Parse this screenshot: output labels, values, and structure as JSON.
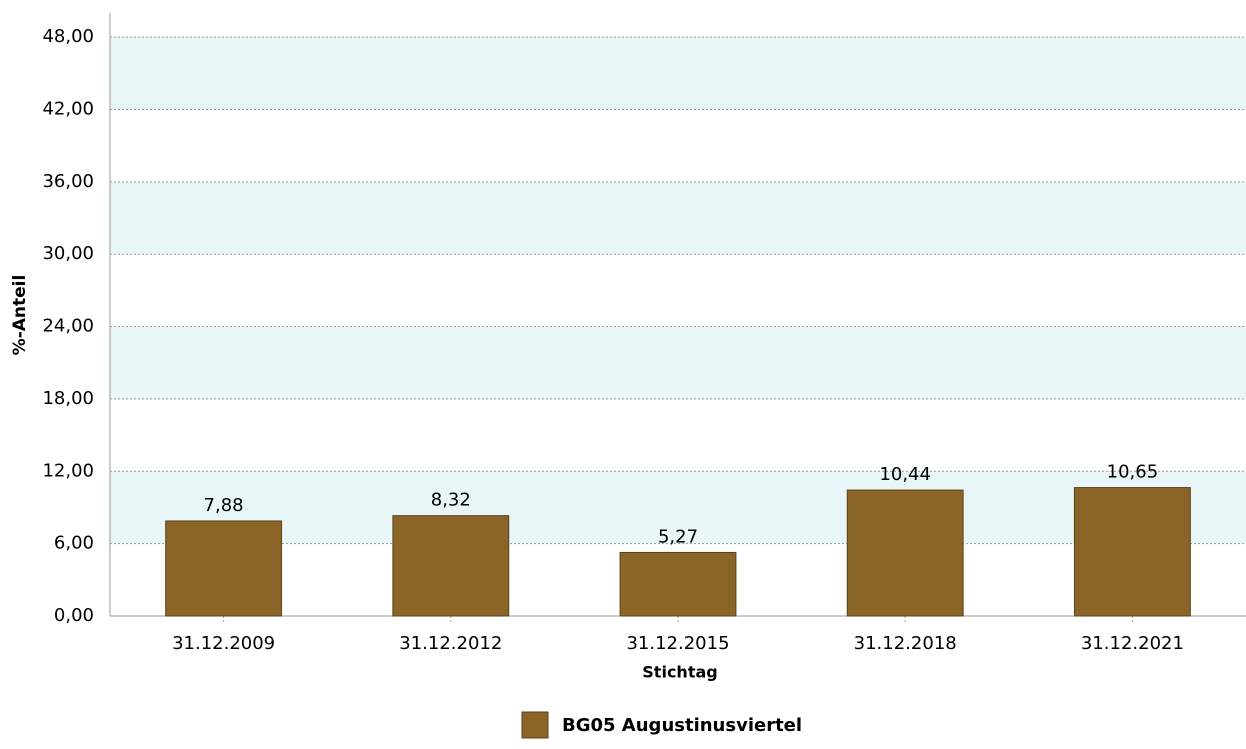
{
  "chart_data": {
    "type": "bar",
    "x_label": "Stichtag",
    "y_label": "%-Anteil",
    "categories": [
      "31.12.2009",
      "31.12.2012",
      "31.12.2015",
      "31.12.2018",
      "31.12.2021"
    ],
    "series": [
      {
        "name": "BG05 Augustinusviertel",
        "color": "#8b6528",
        "values": [
          7.88,
          8.32,
          5.27,
          10.44,
          10.65
        ],
        "value_labels": [
          "7,88",
          "8,32",
          "5,27",
          "10,44",
          "10,65"
        ]
      }
    ],
    "ylim": [
      0,
      50
    ],
    "yticks": [
      {
        "value": 0,
        "label": "0,00"
      },
      {
        "value": 6,
        "label": "6,00"
      },
      {
        "value": 12,
        "label": "12,00"
      },
      {
        "value": 18,
        "label": "18,00"
      },
      {
        "value": 24,
        "label": "24,00"
      },
      {
        "value": 30,
        "label": "30,00"
      },
      {
        "value": 36,
        "label": "36,00"
      },
      {
        "value": 42,
        "label": "42,00"
      },
      {
        "value": 48,
        "label": "48,00"
      }
    ],
    "grid": true,
    "legend": "bottom"
  }
}
